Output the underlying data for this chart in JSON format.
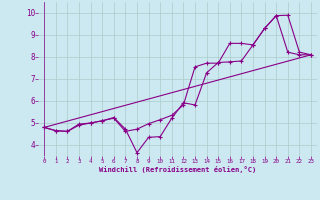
{
  "xlabel": "Windchill (Refroidissement éolien,°C)",
  "background_color": "#cce8f0",
  "grid_color": "#aacccc",
  "line_color": "#880088",
  "xlim": [
    -0.5,
    23.5
  ],
  "ylim": [
    3.5,
    10.5
  ],
  "xticks": [
    0,
    1,
    2,
    3,
    4,
    5,
    6,
    7,
    8,
    9,
    10,
    11,
    12,
    13,
    14,
    15,
    16,
    17,
    18,
    19,
    20,
    21,
    22,
    23
  ],
  "yticks": [
    4,
    5,
    6,
    7,
    8,
    9,
    10
  ],
  "line1_x": [
    0,
    23
  ],
  "line1_y": [
    4.8,
    8.1
  ],
  "line2_x": [
    0,
    1,
    2,
    3,
    4,
    5,
    6,
    7,
    8,
    9,
    10,
    11,
    12,
    13,
    14,
    15,
    16,
    17,
    18,
    19,
    20,
    21,
    22,
    23
  ],
  "line2_y": [
    4.8,
    4.65,
    4.62,
    4.95,
    5.0,
    5.1,
    5.25,
    4.72,
    3.65,
    4.35,
    4.38,
    5.22,
    5.92,
    5.82,
    7.28,
    7.75,
    7.78,
    7.82,
    8.55,
    9.3,
    9.88,
    9.9,
    8.22,
    8.1
  ],
  "line3_x": [
    0,
    1,
    2,
    3,
    4,
    5,
    6,
    7,
    8,
    9,
    10,
    11,
    12,
    13,
    14,
    15,
    16,
    17,
    18,
    19,
    20,
    21,
    22,
    23
  ],
  "line3_y": [
    4.8,
    4.65,
    4.62,
    4.9,
    5.0,
    5.1,
    5.22,
    4.62,
    4.72,
    4.97,
    5.15,
    5.35,
    5.82,
    7.55,
    7.72,
    7.72,
    8.62,
    8.62,
    8.55,
    9.3,
    9.88,
    8.22,
    8.1,
    8.1
  ]
}
